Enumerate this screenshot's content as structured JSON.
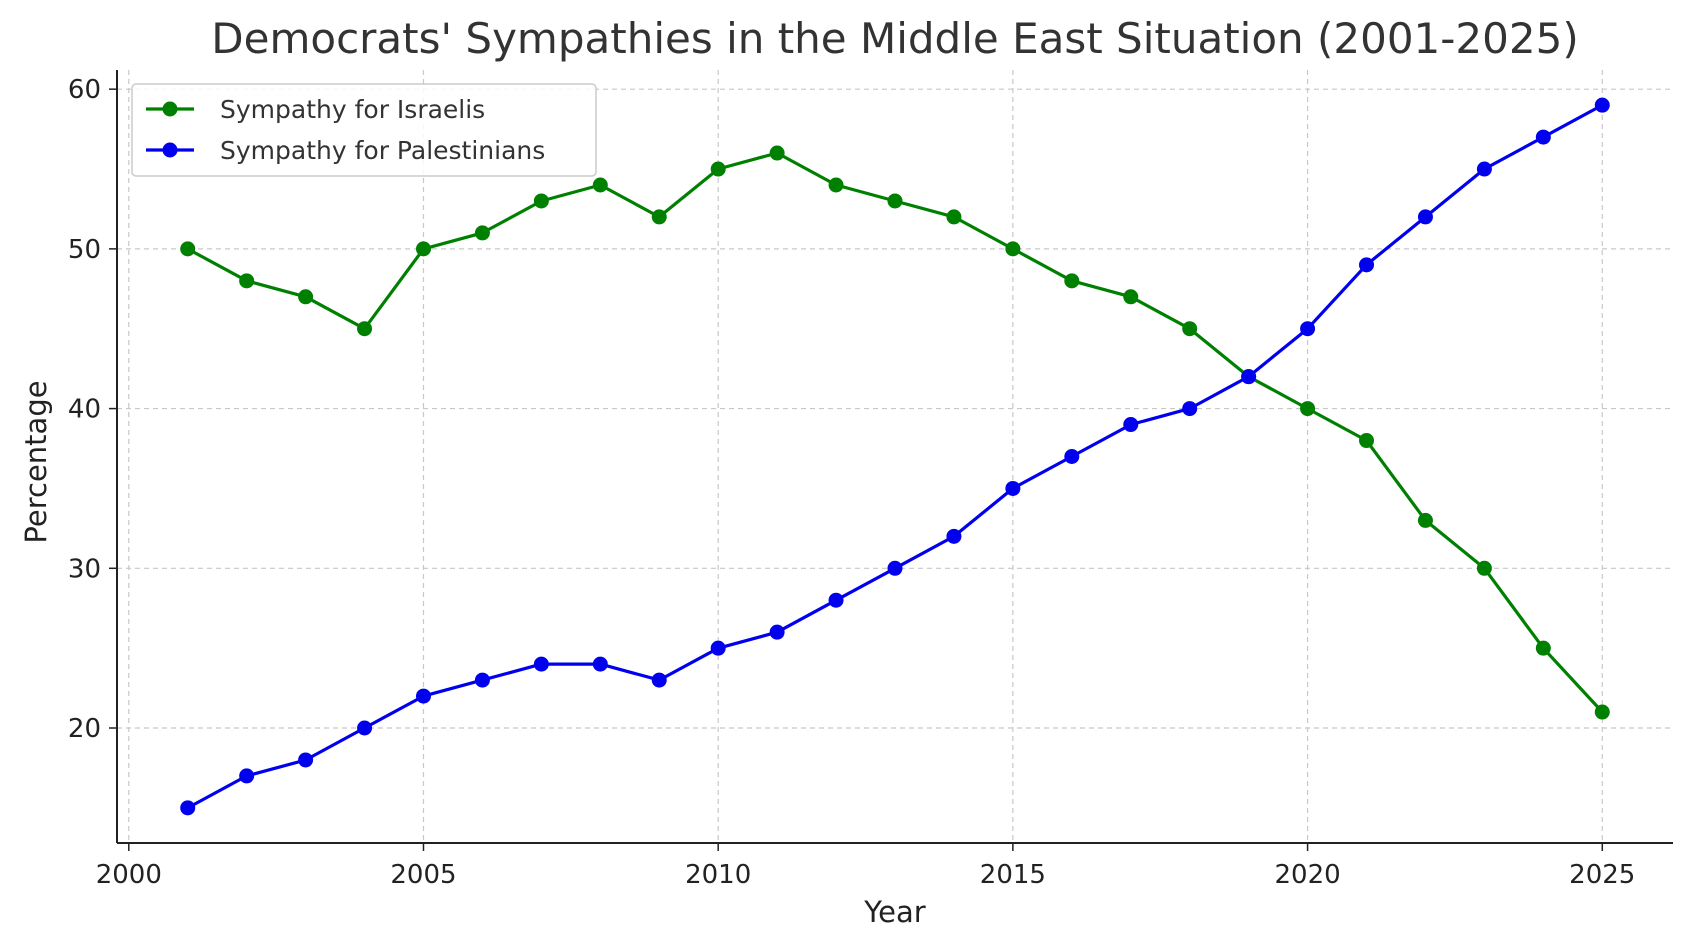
{
  "chart_data": {
    "type": "line",
    "title": "Democrats' Sympathies in the Middle East Situation (2001-2025)",
    "xlabel": "Year",
    "ylabel": "Percentage",
    "x": [
      2001,
      2002,
      2003,
      2004,
      2005,
      2006,
      2007,
      2008,
      2009,
      2010,
      2011,
      2012,
      2013,
      2014,
      2015,
      2016,
      2017,
      2018,
      2019,
      2020,
      2021,
      2022,
      2023,
      2024,
      2025
    ],
    "series": [
      {
        "name": "Sympathy for Israelis",
        "color": "#008000",
        "values": [
          50,
          48,
          47,
          45,
          50,
          51,
          53,
          54,
          52,
          55,
          56,
          54,
          53,
          52,
          50,
          48,
          47,
          45,
          42,
          40,
          38,
          33,
          30,
          25,
          21
        ]
      },
      {
        "name": "Sympathy for Palestinians",
        "color": "#0000ee",
        "values": [
          15,
          17,
          18,
          20,
          22,
          23,
          24,
          24,
          23,
          25,
          26,
          28,
          30,
          32,
          35,
          37,
          39,
          40,
          42,
          45,
          49,
          52,
          55,
          57,
          59
        ]
      }
    ],
    "xlim": [
      1999.8,
      2026.2
    ],
    "ylim": [
      12.8,
      61.2
    ],
    "xticks": [
      "2000",
      "2005",
      "2010",
      "2015",
      "2020",
      "2025"
    ],
    "yticks": [
      "20",
      "30",
      "40",
      "50",
      "60"
    ],
    "grid": true,
    "legend_position": "top-left"
  }
}
